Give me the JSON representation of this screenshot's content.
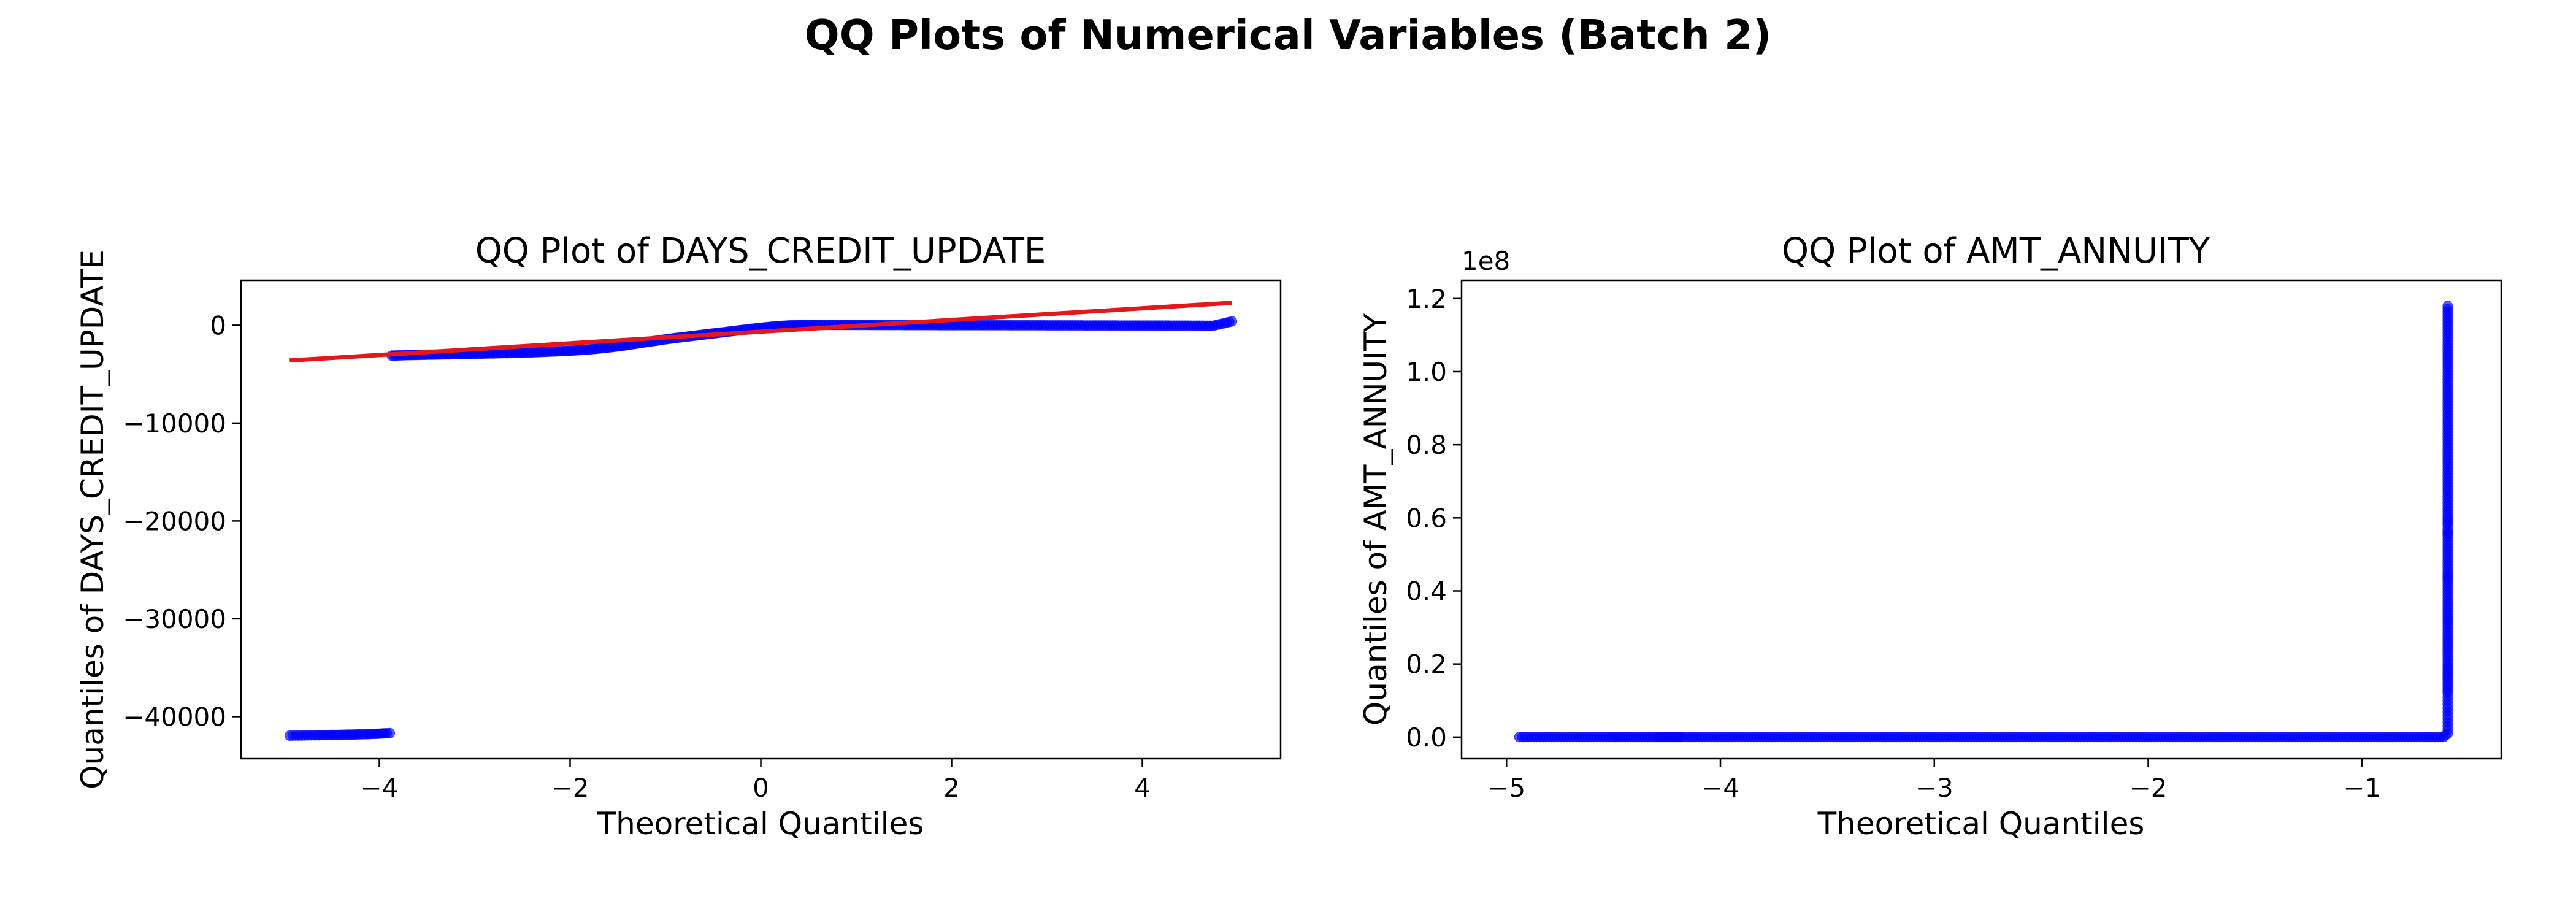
{
  "figure": {
    "title": "QQ Plots of Numerical Variables (Batch 2)"
  },
  "colors": {
    "points": "#0000ff",
    "fit_line": "#e8161b"
  },
  "chart_data": [
    {
      "type": "scatter",
      "title": "QQ Plot of DAYS_CREDIT_UPDATE",
      "xlabel": "Theoretical Quantiles",
      "ylabel": "Quantiles of DAYS_CREDIT_UPDATE",
      "xlim": [
        -5.45,
        5.45
      ],
      "ylim": [
        -44300,
        4600
      ],
      "xticks": [
        -4,
        -2,
        0,
        2,
        4
      ],
      "yticks": [
        0,
        -10000,
        -20000,
        -30000,
        -40000
      ],
      "ytick_labels": [
        "0",
        "−10000",
        "−20000",
        "−30000",
        "−40000"
      ],
      "grid": false,
      "series": [
        {
          "role": "sample",
          "marker": "circle",
          "points": [
            [
              -4.94,
              -41950
            ],
            [
              -4.66,
              -41900
            ],
            [
              -4.52,
              -41880
            ],
            [
              -4.42,
              -41860
            ],
            [
              -4.34,
              -41840
            ],
            [
              -4.27,
              -41830
            ],
            [
              -4.2,
              -41810
            ],
            [
              -4.14,
              -41800
            ],
            [
              -4.09,
              -41780
            ],
            [
              -4.04,
              -41760
            ],
            [
              -4.0,
              -41740
            ],
            [
              -3.96,
              -41720
            ],
            [
              -3.92,
              -41700
            ],
            [
              -3.89,
              -41680
            ],
            [
              -3.87,
              -3100
            ],
            [
              -3.8,
              -3080
            ],
            [
              -3.7,
              -3050
            ],
            [
              -3.6,
              -3030
            ],
            [
              -3.5,
              -3010
            ],
            [
              -3.4,
              -2990
            ],
            [
              -3.3,
              -2970
            ],
            [
              -3.2,
              -2950
            ],
            [
              -3.1,
              -2930
            ],
            [
              -3.0,
              -2910
            ],
            [
              -2.9,
              -2890
            ],
            [
              -2.8,
              -2870
            ],
            [
              -2.7,
              -2850
            ],
            [
              -2.6,
              -2830
            ],
            [
              -2.5,
              -2800
            ],
            [
              -2.4,
              -2770
            ],
            [
              -2.3,
              -2730
            ],
            [
              -2.2,
              -2690
            ],
            [
              -2.1,
              -2650
            ],
            [
              -2.0,
              -2600
            ],
            [
              -1.9,
              -2540
            ],
            [
              -1.8,
              -2470
            ],
            [
              -1.7,
              -2380
            ],
            [
              -1.6,
              -2280
            ],
            [
              -1.5,
              -2160
            ],
            [
              -1.4,
              -2020
            ],
            [
              -1.3,
              -1870
            ],
            [
              -1.2,
              -1720
            ],
            [
              -1.1,
              -1580
            ],
            [
              -1.0,
              -1440
            ],
            [
              -0.9,
              -1310
            ],
            [
              -0.8,
              -1190
            ],
            [
              -0.7,
              -1070
            ],
            [
              -0.6,
              -950
            ],
            [
              -0.5,
              -830
            ],
            [
              -0.4,
              -720
            ],
            [
              -0.3,
              -600
            ],
            [
              -0.2,
              -480
            ],
            [
              -0.1,
              -360
            ],
            [
              0.0,
              -250
            ],
            [
              0.1,
              -150
            ],
            [
              0.2,
              -70
            ],
            [
              0.3,
              -10
            ],
            [
              0.4,
              30
            ],
            [
              0.5,
              40
            ],
            [
              0.6,
              40
            ],
            [
              0.8,
              35
            ],
            [
              1.0,
              30
            ],
            [
              1.2,
              25
            ],
            [
              1.5,
              20
            ],
            [
              1.8,
              15
            ],
            [
              2.1,
              10
            ],
            [
              2.4,
              5
            ],
            [
              2.7,
              0
            ],
            [
              3.0,
              -5
            ],
            [
              3.3,
              -10
            ],
            [
              3.6,
              -15
            ],
            [
              3.9,
              -20
            ],
            [
              4.1,
              -25
            ],
            [
              4.3,
              -30
            ],
            [
              4.45,
              -35
            ],
            [
              4.6,
              -40
            ],
            [
              4.74,
              -50
            ],
            [
              4.94,
              400
            ]
          ]
        },
        {
          "role": "reference_line",
          "points": [
            [
              -4.94,
              -3600
            ],
            [
              4.94,
              2300
            ]
          ]
        }
      ]
    },
    {
      "type": "scatter",
      "title": "QQ Plot of AMT_ANNUITY",
      "xlabel": "Theoretical Quantiles",
      "ylabel": "Quantiles of AMT_ANNUITY",
      "y_offset_label": "1e8",
      "xlim": [
        -5.21,
        -0.35
      ],
      "ylim": [
        -0.059,
        1.25
      ],
      "xticks": [
        -5,
        -4,
        -3,
        -2,
        -1
      ],
      "xtick_labels": [
        "−5",
        "−4",
        "−3",
        "−2",
        "−1"
      ],
      "yticks": [
        0.0,
        0.2,
        0.4,
        0.6,
        0.8,
        1.0,
        1.2
      ],
      "ytick_labels": [
        "0.0",
        "0.2",
        "0.4",
        "0.6",
        "0.8",
        "1.0",
        "1.2"
      ],
      "grid": false,
      "series": [
        {
          "role": "sample",
          "marker": "circle",
          "points": [
            [
              -4.94,
              0.0
            ],
            [
              -4.76,
              0.0
            ],
            [
              -4.66,
              0.0
            ],
            [
              -4.59,
              0.0
            ],
            [
              -4.52,
              0.0
            ],
            [
              -4.47,
              0.0
            ],
            [
              -4.42,
              0.0
            ],
            [
              -4.38,
              0.0
            ],
            [
              -4.34,
              0.0
            ],
            [
              -4.3,
              0.0
            ],
            [
              -4.27,
              0.0
            ],
            [
              -4.24,
              0.0
            ],
            [
              -4.21,
              0.0
            ],
            [
              -4.18,
              0.0
            ],
            [
              -4.1,
              0.0
            ],
            [
              -4.0,
              0.0
            ],
            [
              -3.9,
              0.0
            ],
            [
              -3.8,
              0.0
            ],
            [
              -3.7,
              0.0
            ],
            [
              -3.6,
              0.0
            ],
            [
              -3.5,
              0.0
            ],
            [
              -3.4,
              0.0
            ],
            [
              -3.3,
              0.0
            ],
            [
              -3.2,
              0.0
            ],
            [
              -3.1,
              0.0
            ],
            [
              -3.0,
              0.0
            ],
            [
              -2.9,
              0.0
            ],
            [
              -2.8,
              0.0
            ],
            [
              -2.7,
              0.0
            ],
            [
              -2.6,
              0.0
            ],
            [
              -2.5,
              0.0
            ],
            [
              -2.4,
              0.0
            ],
            [
              -2.3,
              0.0
            ],
            [
              -2.2,
              0.0
            ],
            [
              -2.1,
              0.0
            ],
            [
              -2.0,
              0.0
            ],
            [
              -1.9,
              0.0
            ],
            [
              -1.8,
              0.0
            ],
            [
              -1.7,
              0.0
            ],
            [
              -1.6,
              0.0
            ],
            [
              -1.5,
              0.0
            ],
            [
              -1.4,
              0.0
            ],
            [
              -1.3,
              0.0
            ],
            [
              -1.2,
              0.0
            ],
            [
              -1.1,
              0.0
            ],
            [
              -1.0,
              0.0
            ],
            [
              -0.9,
              0.0
            ],
            [
              -0.8,
              0.0
            ],
            [
              -0.7,
              0.0
            ],
            [
              -0.62,
              0.0
            ],
            [
              -0.6,
              0.01
            ],
            [
              -0.6,
              0.02
            ],
            [
              -0.6,
              0.03
            ],
            [
              -0.6,
              0.04
            ],
            [
              -0.6,
              0.05
            ],
            [
              -0.6,
              0.06
            ],
            [
              -0.6,
              0.07
            ],
            [
              -0.6,
              0.08
            ],
            [
              -0.6,
              0.09
            ],
            [
              -0.6,
              0.1
            ],
            [
              -0.6,
              0.11
            ],
            [
              -0.6,
              0.12
            ],
            [
              -0.6,
              0.165
            ],
            [
              -0.6,
              0.2
            ],
            [
              -0.6,
              0.24
            ],
            [
              -0.6,
              0.27
            ],
            [
              -0.6,
              0.31
            ],
            [
              -0.6,
              0.34
            ],
            [
              -0.6,
              0.43
            ],
            [
              -0.6,
              0.45
            ],
            [
              -0.6,
              0.55
            ],
            [
              -0.6,
              0.57
            ],
            [
              -0.6,
              0.58
            ],
            [
              -0.6,
              0.6
            ],
            [
              -0.6,
              0.905
            ],
            [
              -0.6,
              1.18
            ]
          ]
        }
      ]
    }
  ]
}
